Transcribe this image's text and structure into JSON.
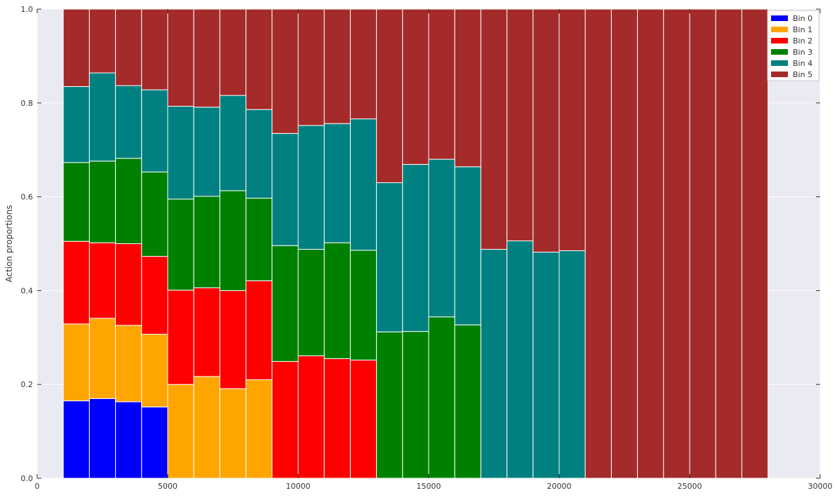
{
  "chart_data": {
    "type": "bar",
    "stacked": true,
    "normalized": true,
    "title": "",
    "xlabel": "",
    "ylabel": "Action proportions",
    "xlim": [
      0,
      30000
    ],
    "ylim": [
      0.0,
      1.0
    ],
    "xticks": [
      0,
      5000,
      10000,
      15000,
      20000,
      25000,
      30000
    ],
    "xtick_labels": [
      "0",
      "5000",
      "10000",
      "15000",
      "20000",
      "25000",
      "30000"
    ],
    "yticks": [
      0.0,
      0.2,
      0.4,
      0.6,
      0.8,
      1.0
    ],
    "ytick_labels": [
      "0.0",
      "0.2",
      "0.4",
      "0.6",
      "0.8",
      "1.0"
    ],
    "grid": true,
    "legend_position": "top-right",
    "background": "#eaeaf2",
    "bar_edge_color": "#ffffff",
    "x": [
      1000,
      2000,
      3000,
      4000,
      5000,
      6000,
      7000,
      8000,
      9000,
      10000,
      11000,
      12000,
      13000,
      14000,
      15000,
      16000,
      17000,
      18000,
      19000,
      20000,
      21000,
      22000,
      23000,
      24000,
      25000,
      26000,
      27000
    ],
    "bar_width": 1000,
    "series": [
      {
        "name": "Bin 0",
        "color": "#0000ff",
        "values": [
          0.165,
          0.17,
          0.163,
          0.152,
          0,
          0,
          0,
          0,
          0,
          0,
          0,
          0,
          0,
          0,
          0,
          0,
          0,
          0,
          0,
          0,
          0,
          0,
          0,
          0,
          0,
          0,
          0
        ]
      },
      {
        "name": "Bin 1",
        "color": "#ffa500",
        "values": [
          0.164,
          0.171,
          0.163,
          0.155,
          0.2,
          0.217,
          0.191,
          0.21,
          0,
          0,
          0,
          0,
          0,
          0,
          0,
          0,
          0,
          0,
          0,
          0,
          0,
          0,
          0,
          0,
          0,
          0,
          0
        ]
      },
      {
        "name": "Bin 2",
        "color": "#ff0000",
        "values": [
          0.176,
          0.161,
          0.174,
          0.166,
          0.201,
          0.189,
          0.209,
          0.211,
          0.249,
          0.261,
          0.255,
          0.252,
          0,
          0,
          0,
          0,
          0,
          0,
          0,
          0,
          0,
          0,
          0,
          0,
          0,
          0,
          0
        ]
      },
      {
        "name": "Bin 3",
        "color": "#008000",
        "values": [
          0.168,
          0.174,
          0.182,
          0.18,
          0.194,
          0.195,
          0.213,
          0.176,
          0.247,
          0.227,
          0.247,
          0.234,
          0.312,
          0.313,
          0.344,
          0.327,
          0,
          0,
          0,
          0,
          0,
          0,
          0,
          0,
          0,
          0,
          0
        ]
      },
      {
        "name": "Bin 4",
        "color": "#008080",
        "values": [
          0.162,
          0.188,
          0.155,
          0.175,
          0.198,
          0.19,
          0.203,
          0.189,
          0.239,
          0.264,
          0.254,
          0.28,
          0.318,
          0.356,
          0.336,
          0.337,
          0.488,
          0.506,
          0.482,
          0.485,
          0,
          0,
          0,
          0,
          0,
          0,
          0
        ]
      },
      {
        "name": "Bin 5",
        "color": "#a52a2a",
        "values": [
          0.165,
          0.136,
          0.163,
          0.172,
          0.207,
          0.209,
          0.184,
          0.214,
          0.265,
          0.248,
          0.244,
          0.234,
          0.37,
          0.331,
          0.32,
          0.336,
          0.512,
          0.494,
          0.518,
          0.515,
          1.0,
          1.0,
          1.0,
          1.0,
          1.0,
          1.0,
          1.0
        ]
      }
    ]
  }
}
